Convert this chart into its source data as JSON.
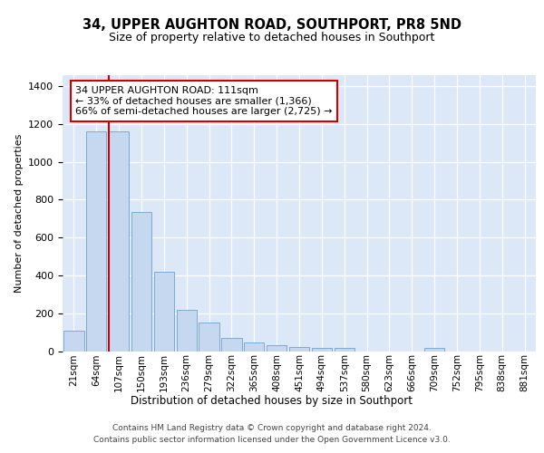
{
  "title1": "34, UPPER AUGHTON ROAD, SOUTHPORT, PR8 5ND",
  "title2": "Size of property relative to detached houses in Southport",
  "xlabel": "Distribution of detached houses by size in Southport",
  "ylabel": "Number of detached properties",
  "categories": [
    "21sqm",
    "64sqm",
    "107sqm",
    "150sqm",
    "193sqm",
    "236sqm",
    "279sqm",
    "322sqm",
    "365sqm",
    "408sqm",
    "451sqm",
    "494sqm",
    "537sqm",
    "580sqm",
    "623sqm",
    "666sqm",
    "709sqm",
    "752sqm",
    "795sqm",
    "838sqm",
    "881sqm"
  ],
  "bar_heights": [
    107,
    1160,
    1162,
    733,
    418,
    218,
    152,
    70,
    47,
    32,
    20,
    15,
    15,
    0,
    0,
    0,
    15,
    0,
    0,
    0,
    0
  ],
  "bar_color": "#c5d8f0",
  "bar_edge_color": "#7aabd4",
  "vline_color": "#cc0000",
  "annotation_text": "34 UPPER AUGHTON ROAD: 111sqm\n← 33% of detached houses are smaller (1,366)\n66% of semi-detached houses are larger (2,725) →",
  "ylim": [
    0,
    1460
  ],
  "yticks": [
    0,
    200,
    400,
    600,
    800,
    1000,
    1200,
    1400
  ],
  "footer1": "Contains HM Land Registry data © Crown copyright and database right 2024.",
  "footer2": "Contains public sector information licensed under the Open Government Licence v3.0.",
  "bg_color": "#dce8f8",
  "property_bin_index": 2
}
